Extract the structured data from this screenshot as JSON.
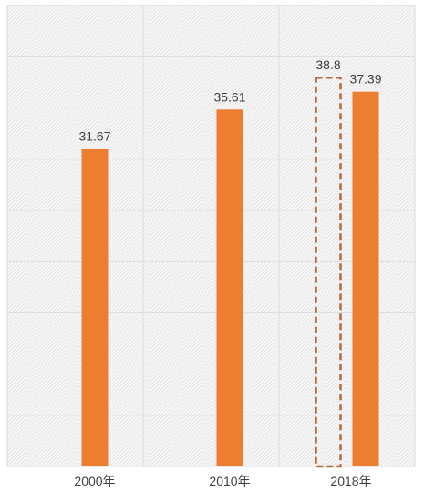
{
  "chart_data": {
    "type": "bar",
    "categories": [
      "2000年",
      "2010年",
      "2018年"
    ],
    "series": [
      {
        "values": [
          31.67,
          35.61,
          37.39
        ],
        "color": "#ed7d31",
        "style": "solid"
      },
      {
        "values": [
          null,
          null,
          38.8
        ],
        "color": "#b46a3c",
        "style": "dashed-outline"
      }
    ],
    "data_labels": {
      "solid": [
        "31.67",
        "35.61",
        "37.39"
      ],
      "outline": [
        "",
        "",
        "38.8"
      ]
    },
    "ylim": [
      0,
      46
    ],
    "grid": true,
    "legend": "none",
    "title": "",
    "xlabel": "",
    "ylabel": ""
  }
}
